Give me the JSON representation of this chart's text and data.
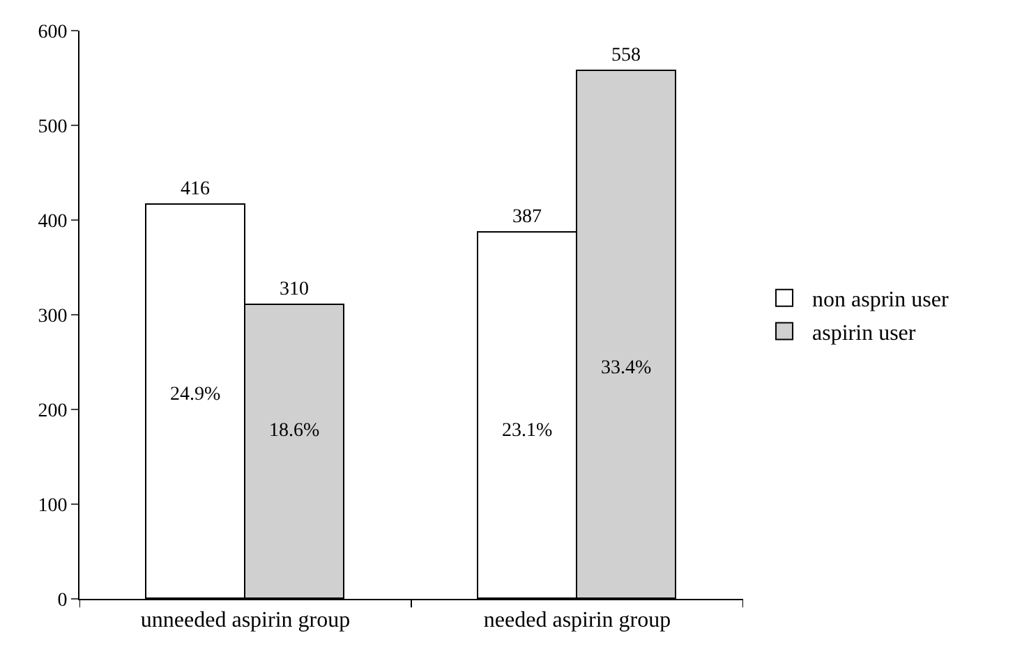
{
  "chart_data": {
    "type": "bar",
    "categories": [
      "unneeded aspirin group",
      "needed aspirin group"
    ],
    "series": [
      {
        "name": "non asprin user",
        "color": "#ffffff",
        "values": [
          416,
          387
        ]
      },
      {
        "name": "aspirin user",
        "color": "#d0d0d0",
        "values": [
          310,
          558
        ]
      }
    ],
    "ylim": [
      0,
      600
    ],
    "yticks": [
      0,
      100,
      200,
      300,
      400,
      500,
      600
    ],
    "legend": "right",
    "data_labels": true,
    "annotations": [
      {
        "text": "24.9%",
        "x": "unneeded aspirin group",
        "y": 215
      },
      {
        "text": "18.6%",
        "x": "unneeded aspirin group",
        "y": 177
      },
      {
        "text": "23.1%",
        "x": "needed aspirin group",
        "y": 177
      },
      {
        "text": "33.4%",
        "x": "needed aspirin group",
        "y": 244
      }
    ]
  }
}
